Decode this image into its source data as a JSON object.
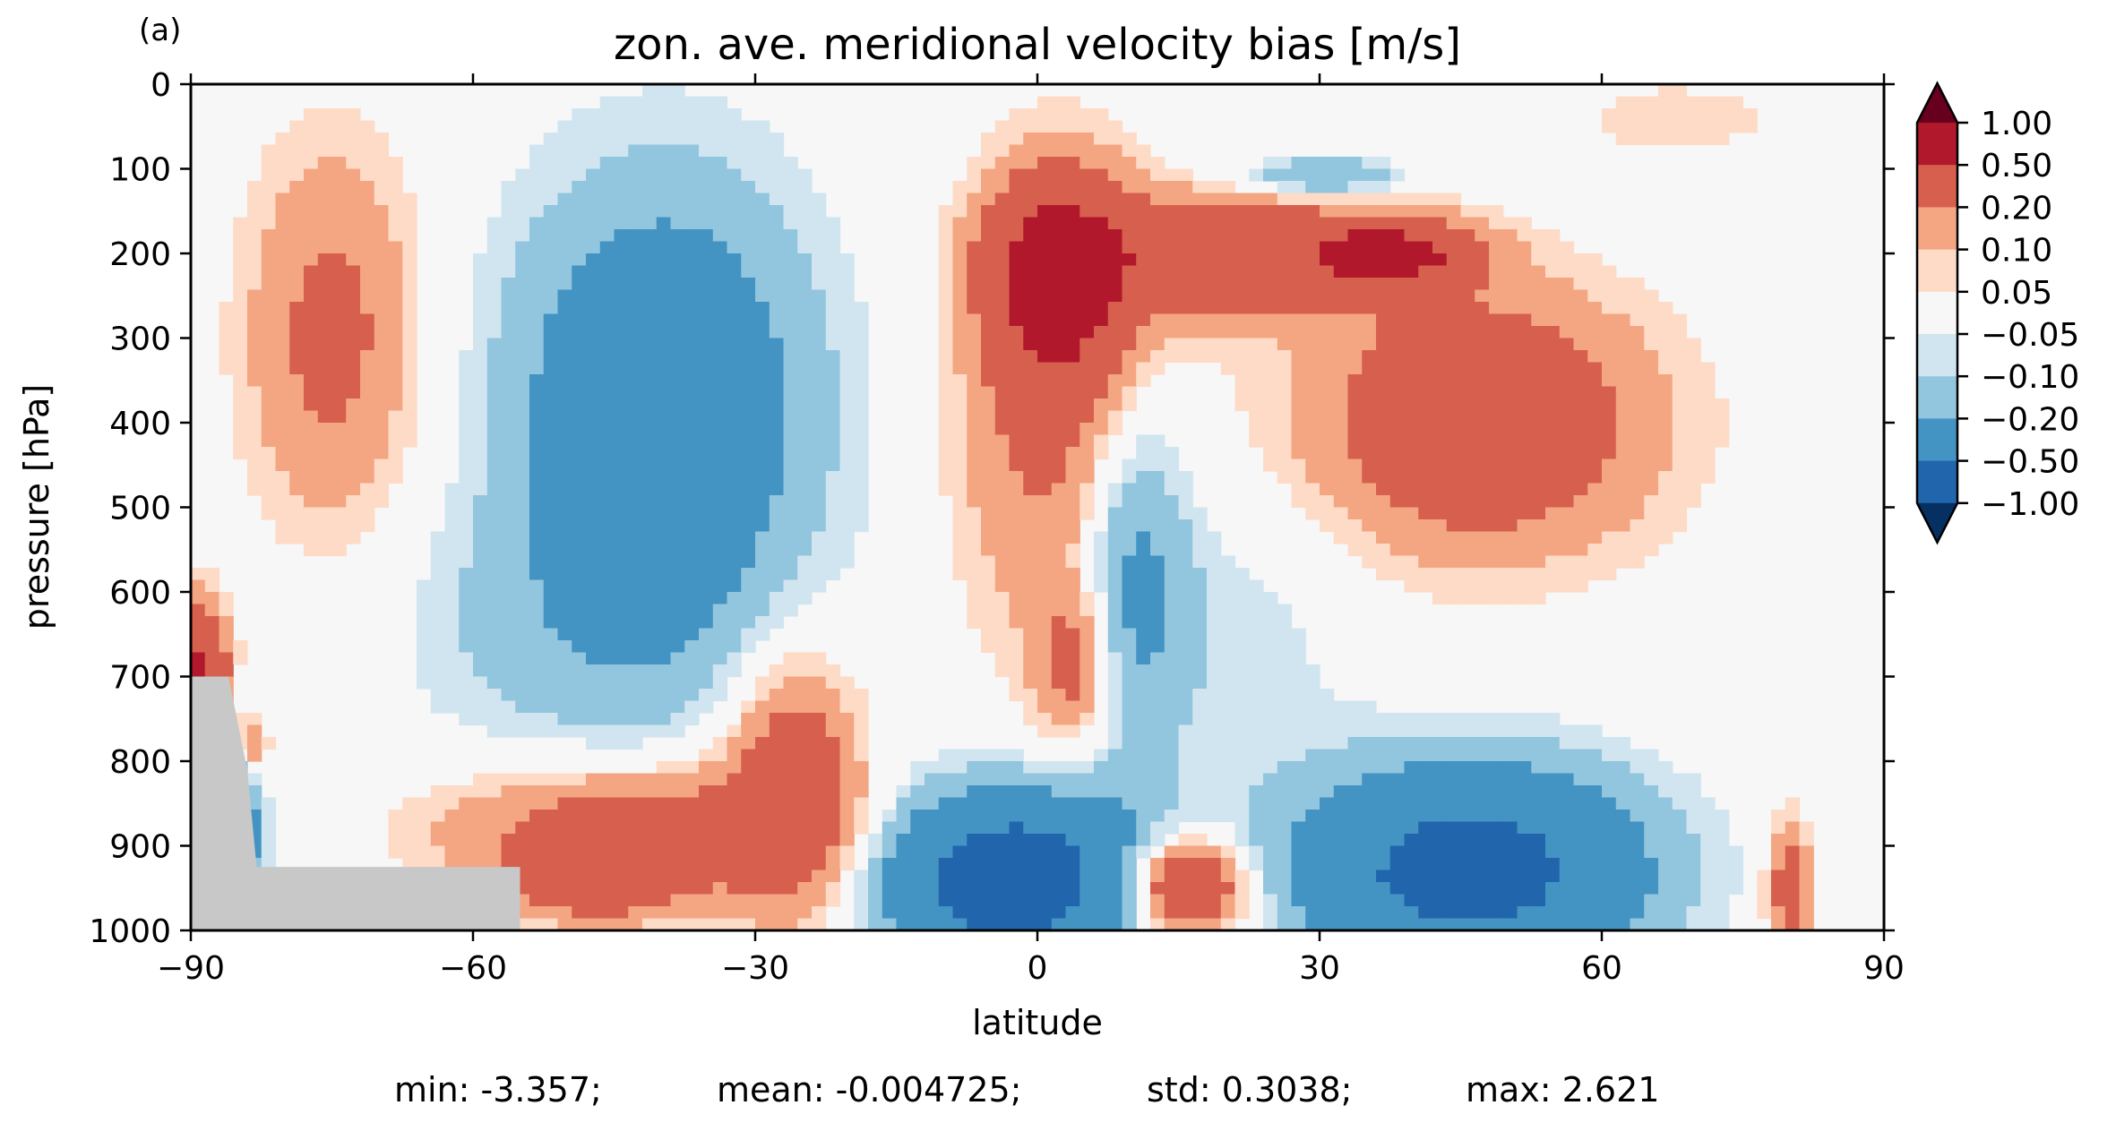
{
  "chart_data": {
    "type": "heatmap",
    "panel_label": "(a)",
    "title": "zon. ave. meridional velocity bias [m/s]",
    "xlabel": "latitude",
    "ylabel": "pressure [hPa]",
    "xlim": [
      -90,
      90
    ],
    "ylim": [
      1000,
      0
    ],
    "x_ticks": [
      -90,
      -60,
      -30,
      0,
      30,
      60,
      90
    ],
    "x_tick_labels": [
      "−90",
      "−60",
      "−30",
      "0",
      "30",
      "60",
      "90"
    ],
    "y_ticks": [
      0,
      100,
      200,
      300,
      400,
      500,
      600,
      700,
      800,
      900,
      1000
    ],
    "y_tick_labels": [
      "0",
      "100",
      "200",
      "300",
      "400",
      "500",
      "600",
      "700",
      "800",
      "900",
      "1000"
    ],
    "colorbar": {
      "ticks": [
        -1.0,
        -0.5,
        -0.2,
        -0.1,
        -0.05,
        0.05,
        0.1,
        0.2,
        0.5,
        1.0
      ],
      "tick_labels": [
        "−1.00",
        "−0.50",
        "−0.20",
        "−0.10",
        "−0.05",
        "0.05",
        "0.10",
        "0.20",
        "0.50",
        "1.00"
      ],
      "colors": [
        "#053061",
        "#2166ac",
        "#4393c3",
        "#92c5de",
        "#d1e5f0",
        "#f7f7f7",
        "#fddbc7",
        "#f4a582",
        "#d6604d",
        "#b2182b",
        "#67001f"
      ],
      "extend": "both"
    },
    "missing_color": "#c8c8c8",
    "stats": {
      "min": "min: -3.357;",
      "mean": "mean: -0.004725;",
      "std": "std: 0.3038;",
      "max": "max: 2.621"
    }
  }
}
